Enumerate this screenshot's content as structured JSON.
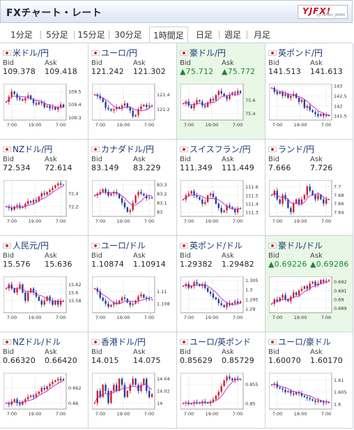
{
  "header": {
    "title": "FXチャート・レート",
    "logo": "YJFX!",
    "logo_sub": "by Yahoo! JAPAN"
  },
  "tabs": [
    "1分足",
    "5分足",
    "15分足",
    "30分足",
    "1時間足",
    "日足",
    "週足",
    "月足"
  ],
  "active_tab": 4,
  "labels": {
    "bid": "Bid",
    "ask": "Ask"
  },
  "pairs": [
    {
      "name": "米ドル/円",
      "bid": "109.378",
      "ask": "109.418",
      "up": false,
      "hl": false,
      "yticks": [
        "109.5",
        "109.4",
        "109.3"
      ],
      "yvals": [
        109.5,
        109.4,
        109.3
      ],
      "ylim": [
        109.28,
        109.56
      ],
      "xticks": [
        "7:00",
        "19:00",
        "7:00"
      ],
      "path": [
        109.42,
        109.46,
        109.5,
        109.48,
        109.45,
        109.44,
        109.43,
        109.45,
        109.47,
        109.44,
        109.41,
        109.4,
        109.42,
        109.41,
        109.38,
        109.39,
        109.37,
        109.38,
        109.36,
        109.38,
        109.4,
        109.38
      ]
    },
    {
      "name": "ユーロ/円",
      "bid": "121.242",
      "ask": "121.302",
      "up": false,
      "hl": false,
      "yticks": [
        "121.4",
        "121.2"
      ],
      "yvals": [
        121.4,
        121.2
      ],
      "ylim": [
        121.05,
        121.55
      ],
      "xticks": [
        "7:00",
        "19:00",
        "7:00"
      ],
      "path": [
        121.4,
        121.38,
        121.35,
        121.3,
        121.22,
        121.2,
        121.18,
        121.2,
        121.23,
        121.21,
        121.25,
        121.28,
        121.22,
        121.18,
        121.1,
        121.12,
        121.2,
        121.24,
        121.26,
        121.23,
        121.25,
        121.24
      ]
    },
    {
      "name": "豪ドル/円",
      "bid": "▲75.712",
      "ask": "▲75.772",
      "up": true,
      "hl": true,
      "yticks": [
        "75.6",
        "75.4"
      ],
      "yvals": [
        75.6,
        75.4
      ],
      "ylim": [
        75.3,
        75.85
      ],
      "xticks": [
        "7:00",
        "19:00",
        "7:00"
      ],
      "path": [
        75.55,
        75.58,
        75.52,
        75.48,
        75.55,
        75.6,
        75.58,
        75.52,
        75.5,
        75.57,
        75.62,
        75.6,
        75.68,
        75.74,
        75.7,
        75.66,
        75.62,
        75.68,
        75.72,
        75.7,
        75.74,
        75.71
      ]
    },
    {
      "name": "英ポンド/円",
      "bid": "141.513",
      "ask": "141.613",
      "up": false,
      "hl": false,
      "yticks": [
        "143",
        "142.5",
        "142",
        "141.5"
      ],
      "yvals": [
        143,
        142.5,
        142,
        141.5
      ],
      "ylim": [
        141.3,
        143.1
      ],
      "xticks": [
        "7:00",
        "19:00",
        "7:00"
      ],
      "path": [
        142.9,
        142.7,
        142.6,
        142.7,
        142.5,
        142.6,
        142.4,
        142.5,
        142.6,
        142.4,
        142.2,
        142.3,
        141.9,
        142.0,
        141.8,
        141.7,
        141.6,
        141.5,
        141.6,
        141.5,
        141.55,
        141.51
      ]
    },
    {
      "name": "NZドル/円",
      "bid": "72.534",
      "ask": "72.614",
      "up": false,
      "hl": false,
      "yticks": [
        "72.4",
        "72.2"
      ],
      "yvals": [
        72.4,
        72.2
      ],
      "ylim": [
        72.05,
        72.6
      ],
      "xticks": [
        "7:00",
        "19:00",
        "7:00"
      ],
      "path": [
        72.2,
        72.18,
        72.15,
        72.2,
        72.22,
        72.18,
        72.2,
        72.24,
        72.28,
        72.26,
        72.3,
        72.28,
        72.35,
        72.4,
        72.38,
        72.42,
        72.45,
        72.48,
        72.52,
        72.55,
        72.53,
        72.53
      ]
    },
    {
      "name": "カナダドル/円",
      "bid": "83.149",
      "ask": "83.229",
      "up": false,
      "hl": false,
      "yticks": [
        "83.3",
        "83.2",
        "83.1",
        "83"
      ],
      "yvals": [
        83.3,
        83.2,
        83.1,
        83.0
      ],
      "ylim": [
        82.95,
        83.35
      ],
      "xticks": [
        "7:00",
        "19:00",
        "7:00"
      ],
      "path": [
        83.18,
        83.2,
        83.22,
        83.25,
        83.22,
        83.18,
        83.2,
        83.22,
        83.2,
        83.15,
        83.1,
        83.05,
        83.0,
        83.02,
        83.1,
        83.18,
        83.22,
        83.2,
        83.18,
        83.15,
        83.16,
        83.15
      ]
    },
    {
      "name": "スイスフラン/円",
      "bid": "111.349",
      "ask": "111.449",
      "up": false,
      "hl": false,
      "yticks": [
        "111.6",
        "111.5",
        "111.4",
        "111.3"
      ],
      "yvals": [
        111.6,
        111.5,
        111.4,
        111.3
      ],
      "ylim": [
        111.25,
        111.68
      ],
      "xticks": [
        "7:00",
        "19:00",
        "7:00"
      ],
      "path": [
        111.45,
        111.5,
        111.52,
        111.55,
        111.5,
        111.48,
        111.45,
        111.4,
        111.42,
        111.5,
        111.52,
        111.48,
        111.4,
        111.35,
        111.3,
        111.32,
        111.38,
        111.36,
        111.34,
        111.3,
        111.34,
        111.35
      ]
    },
    {
      "name": "ランド/円",
      "bid": "7.666",
      "ask": "7.726",
      "up": false,
      "hl": false,
      "yticks": [
        "7.7",
        "7.68",
        "7.66",
        "7.64"
      ],
      "yvals": [
        7.7,
        7.68,
        7.66,
        7.64
      ],
      "ylim": [
        7.63,
        7.715
      ],
      "xticks": [
        "7:00",
        "19:00",
        "7:00"
      ],
      "path": [
        7.68,
        7.69,
        7.67,
        7.66,
        7.68,
        7.67,
        7.65,
        7.64,
        7.66,
        7.67,
        7.66,
        7.67,
        7.68,
        7.7,
        7.69,
        7.68,
        7.67,
        7.68,
        7.67,
        7.66,
        7.67,
        7.67
      ]
    },
    {
      "name": "人民元/円",
      "bid": "15.576",
      "ask": "15.636",
      "up": false,
      "hl": false,
      "yticks": [
        "15.62",
        "15.6",
        "15.58"
      ],
      "yvals": [
        15.62,
        15.6,
        15.58
      ],
      "ylim": [
        15.55,
        15.64
      ],
      "xticks": [
        "7:00",
        "19:00",
        "7:00"
      ],
      "path": [
        15.61,
        15.62,
        15.61,
        15.6,
        15.61,
        15.62,
        15.6,
        15.58,
        15.6,
        15.61,
        15.6,
        15.59,
        15.58,
        15.57,
        15.58,
        15.59,
        15.58,
        15.57,
        15.58,
        15.57,
        15.58,
        15.58
      ]
    },
    {
      "name": "ユーロ/ドル",
      "bid": "1.10874",
      "ask": "1.10914",
      "up": false,
      "hl": false,
      "yticks": [
        "1.11",
        "1.108"
      ],
      "yvals": [
        1.11,
        1.108
      ],
      "ylim": [
        1.1065,
        1.1125
      ],
      "xticks": [
        "7:00",
        "19:00",
        "7:00"
      ],
      "path": [
        1.1105,
        1.11,
        1.109,
        1.1085,
        1.108,
        1.1075,
        1.1078,
        1.1082,
        1.108,
        1.1085,
        1.109,
        1.1088,
        1.1082,
        1.1078,
        1.108,
        1.1085,
        1.1092,
        1.1095,
        1.109,
        1.1088,
        1.1087,
        1.1087
      ]
    },
    {
      "name": "英ポンド/ドル",
      "bid": "1.29382",
      "ask": "1.29482",
      "up": false,
      "hl": false,
      "yticks": [
        "1.305",
        "1.3",
        "1.295",
        "1.29"
      ],
      "yvals": [
        1.305,
        1.3,
        1.295,
        1.29
      ],
      "ylim": [
        1.288,
        1.307
      ],
      "xticks": [
        "7:00",
        "19:00",
        "7:00"
      ],
      "path": [
        1.302,
        1.303,
        1.301,
        1.302,
        1.304,
        1.303,
        1.302,
        1.303,
        1.301,
        1.299,
        1.298,
        1.296,
        1.295,
        1.293,
        1.292,
        1.291,
        1.293,
        1.292,
        1.293,
        1.294,
        1.293,
        1.294
      ]
    },
    {
      "name": "豪ドル/ドル",
      "bid": "▲0.69226",
      "ask": "▲0.69286",
      "up": true,
      "hl": true,
      "yticks": [
        "0.692",
        "0.691",
        "0.69",
        "0.689"
      ],
      "yvals": [
        0.692,
        0.691,
        0.69,
        0.689
      ],
      "ylim": [
        0.6885,
        0.6926
      ],
      "xticks": [
        "7:00",
        "19:00",
        "7:00"
      ],
      "path": [
        0.6895,
        0.69,
        0.6898,
        0.6902,
        0.6905,
        0.69,
        0.6898,
        0.6903,
        0.6908,
        0.6905,
        0.691,
        0.6912,
        0.6915,
        0.6912,
        0.6918,
        0.692,
        0.6916,
        0.6918,
        0.6922,
        0.692,
        0.6921,
        0.6922
      ]
    },
    {
      "name": "NZドル/ドル",
      "bid": "0.66320",
      "ask": "0.66420",
      "up": false,
      "hl": false,
      "yticks": [
        "0.662",
        "0.66"
      ],
      "yvals": [
        0.662,
        0.66
      ],
      "ylim": [
        0.6592,
        0.664
      ],
      "xticks": [
        "7:00",
        "19:00",
        "7:00"
      ],
      "path": [
        0.66,
        0.6598,
        0.6602,
        0.6605,
        0.66,
        0.6598,
        0.6602,
        0.6605,
        0.6608,
        0.661,
        0.6608,
        0.6612,
        0.6615,
        0.662,
        0.6618,
        0.6622,
        0.6625,
        0.6628,
        0.663,
        0.6632,
        0.663,
        0.6632
      ]
    },
    {
      "name": "香港ドル/円",
      "bid": "14.015",
      "ask": "14.075",
      "up": false,
      "hl": false,
      "yticks": [
        "14.04",
        "14.02",
        "14"
      ],
      "yvals": [
        14.04,
        14.02,
        14.0
      ],
      "ylim": [
        13.99,
        14.05
      ],
      "xticks": [
        "7:00",
        "19:00",
        "7:00"
      ],
      "path": [
        14.0,
        14.02,
        14.01,
        14.03,
        14.02,
        14.0,
        14.02,
        14.03,
        14.02,
        14.04,
        14.03,
        14.01,
        14.02,
        14.03,
        14.04,
        14.03,
        14.02,
        14.03,
        14.04,
        14.02,
        14.01,
        14.015
      ]
    },
    {
      "name": "ユーロ/英ポンド",
      "bid": "0.85629",
      "ask": "0.85729",
      "up": false,
      "hl": false,
      "yticks": [
        "0.855",
        "0.85"
      ],
      "yvals": [
        0.855,
        0.85
      ],
      "ylim": [
        0.8485,
        0.858
      ],
      "xticks": [
        "7:00",
        "19:00",
        "7:00"
      ],
      "path": [
        0.85,
        0.8502,
        0.8498,
        0.85,
        0.8503,
        0.8502,
        0.85,
        0.8505,
        0.8502,
        0.85,
        0.8505,
        0.851,
        0.852,
        0.853,
        0.8545,
        0.856,
        0.857,
        0.8565,
        0.856,
        0.8565,
        0.8562,
        0.8563
      ]
    },
    {
      "name": "ユーロ/豪ドル",
      "bid": "1.60070",
      "ask": "1.60170",
      "up": false,
      "hl": false,
      "yticks": [
        "1.61",
        "1.605",
        "1.6"
      ],
      "yvals": [
        1.61,
        1.605,
        1.6
      ],
      "ylim": [
        1.598,
        1.613
      ],
      "xticks": [
        "7:00",
        "19:00",
        "7:00"
      ],
      "path": [
        1.608,
        1.6085,
        1.607,
        1.6065,
        1.606,
        1.605,
        1.6055,
        1.6045,
        1.604,
        1.605,
        1.6045,
        1.6035,
        1.603,
        1.6025,
        1.602,
        1.6015,
        1.601,
        1.6015,
        1.601,
        1.6005,
        1.6008,
        1.6007
      ]
    }
  ]
}
